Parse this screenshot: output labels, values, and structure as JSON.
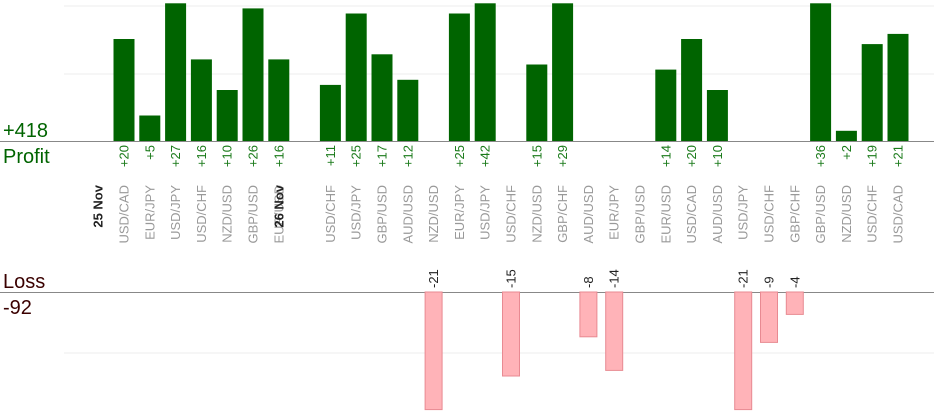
{
  "summary": {
    "profit_total": "+418",
    "profit_label": "Profit",
    "loss_label": "Loss",
    "loss_total": "-92"
  },
  "chart_data": {
    "type": "bar",
    "colors": {
      "profit": "#006400",
      "loss": "#ffb3b8",
      "loss_border": "#e88a92",
      "profit_text": "#1a7a1a",
      "loss_text": "#222222",
      "axis": "#888888",
      "grid": "#eeeeee"
    },
    "profit_clip_max": 27,
    "loss_clip_max": 21,
    "groups": [
      {
        "date": "25 Nov",
        "trades": [
          {
            "pair": "USD/CAD",
            "value": 20,
            "label": "+20"
          },
          {
            "pair": "EUR/JPY",
            "value": 5,
            "label": "+5"
          },
          {
            "pair": "USD/JPY",
            "value": 27,
            "label": "+27"
          },
          {
            "pair": "USD/CHF",
            "value": 16,
            "label": "+16"
          },
          {
            "pair": "NZD/USD",
            "value": 10,
            "label": "+10"
          },
          {
            "pair": "GBP/USD",
            "value": 26,
            "label": "+26"
          },
          {
            "pair": "EUR/USD",
            "value": 16,
            "label": "+16"
          }
        ]
      },
      {
        "date": "26 Nov",
        "trades": [
          {
            "pair": "USD/CHF",
            "value": 11,
            "label": "+11"
          },
          {
            "pair": "USD/JPY",
            "value": 25,
            "label": "+25"
          },
          {
            "pair": "GBP/USD",
            "value": 17,
            "label": "+17"
          },
          {
            "pair": "AUD/USD",
            "value": 12,
            "label": "+12"
          },
          {
            "pair": "NZD/USD",
            "value": -21,
            "label": "-21"
          },
          {
            "pair": "EUR/JPY",
            "value": 25,
            "label": "+25"
          },
          {
            "pair": "USD/JPY",
            "value": 42,
            "label": "+42"
          },
          {
            "pair": "USD/CHF",
            "value": -15,
            "label": "-15"
          },
          {
            "pair": "NZD/USD",
            "value": 15,
            "label": "+15"
          },
          {
            "pair": "GBP/CHF",
            "value": 29,
            "label": "+29"
          },
          {
            "pair": "AUD/USD",
            "value": -8,
            "label": "-8"
          },
          {
            "pair": "EUR/JPY",
            "value": -14,
            "label": "-14"
          },
          {
            "pair": "GBP/USD",
            "value": null,
            "label": ""
          },
          {
            "pair": "EUR/USD",
            "value": 14,
            "label": "+14"
          },
          {
            "pair": "USD/CAD",
            "value": 20,
            "label": "+20"
          },
          {
            "pair": "AUD/USD",
            "value": 10,
            "label": "+10"
          },
          {
            "pair": "USD/JPY",
            "value": -21,
            "label": "-21"
          },
          {
            "pair": "USD/CHF",
            "value": -9,
            "label": "-9"
          },
          {
            "pair": "GBP/CHF",
            "value": -4,
            "label": "-4"
          },
          {
            "pair": "GBP/USD",
            "value": 36,
            "label": "+36"
          },
          {
            "pair": "NZD/USD",
            "value": 2,
            "label": "+2"
          },
          {
            "pair": "USD/CHF",
            "value": 19,
            "label": "+19"
          },
          {
            "pair": "USD/CAD",
            "value": 21,
            "label": "+21"
          }
        ]
      }
    ]
  }
}
